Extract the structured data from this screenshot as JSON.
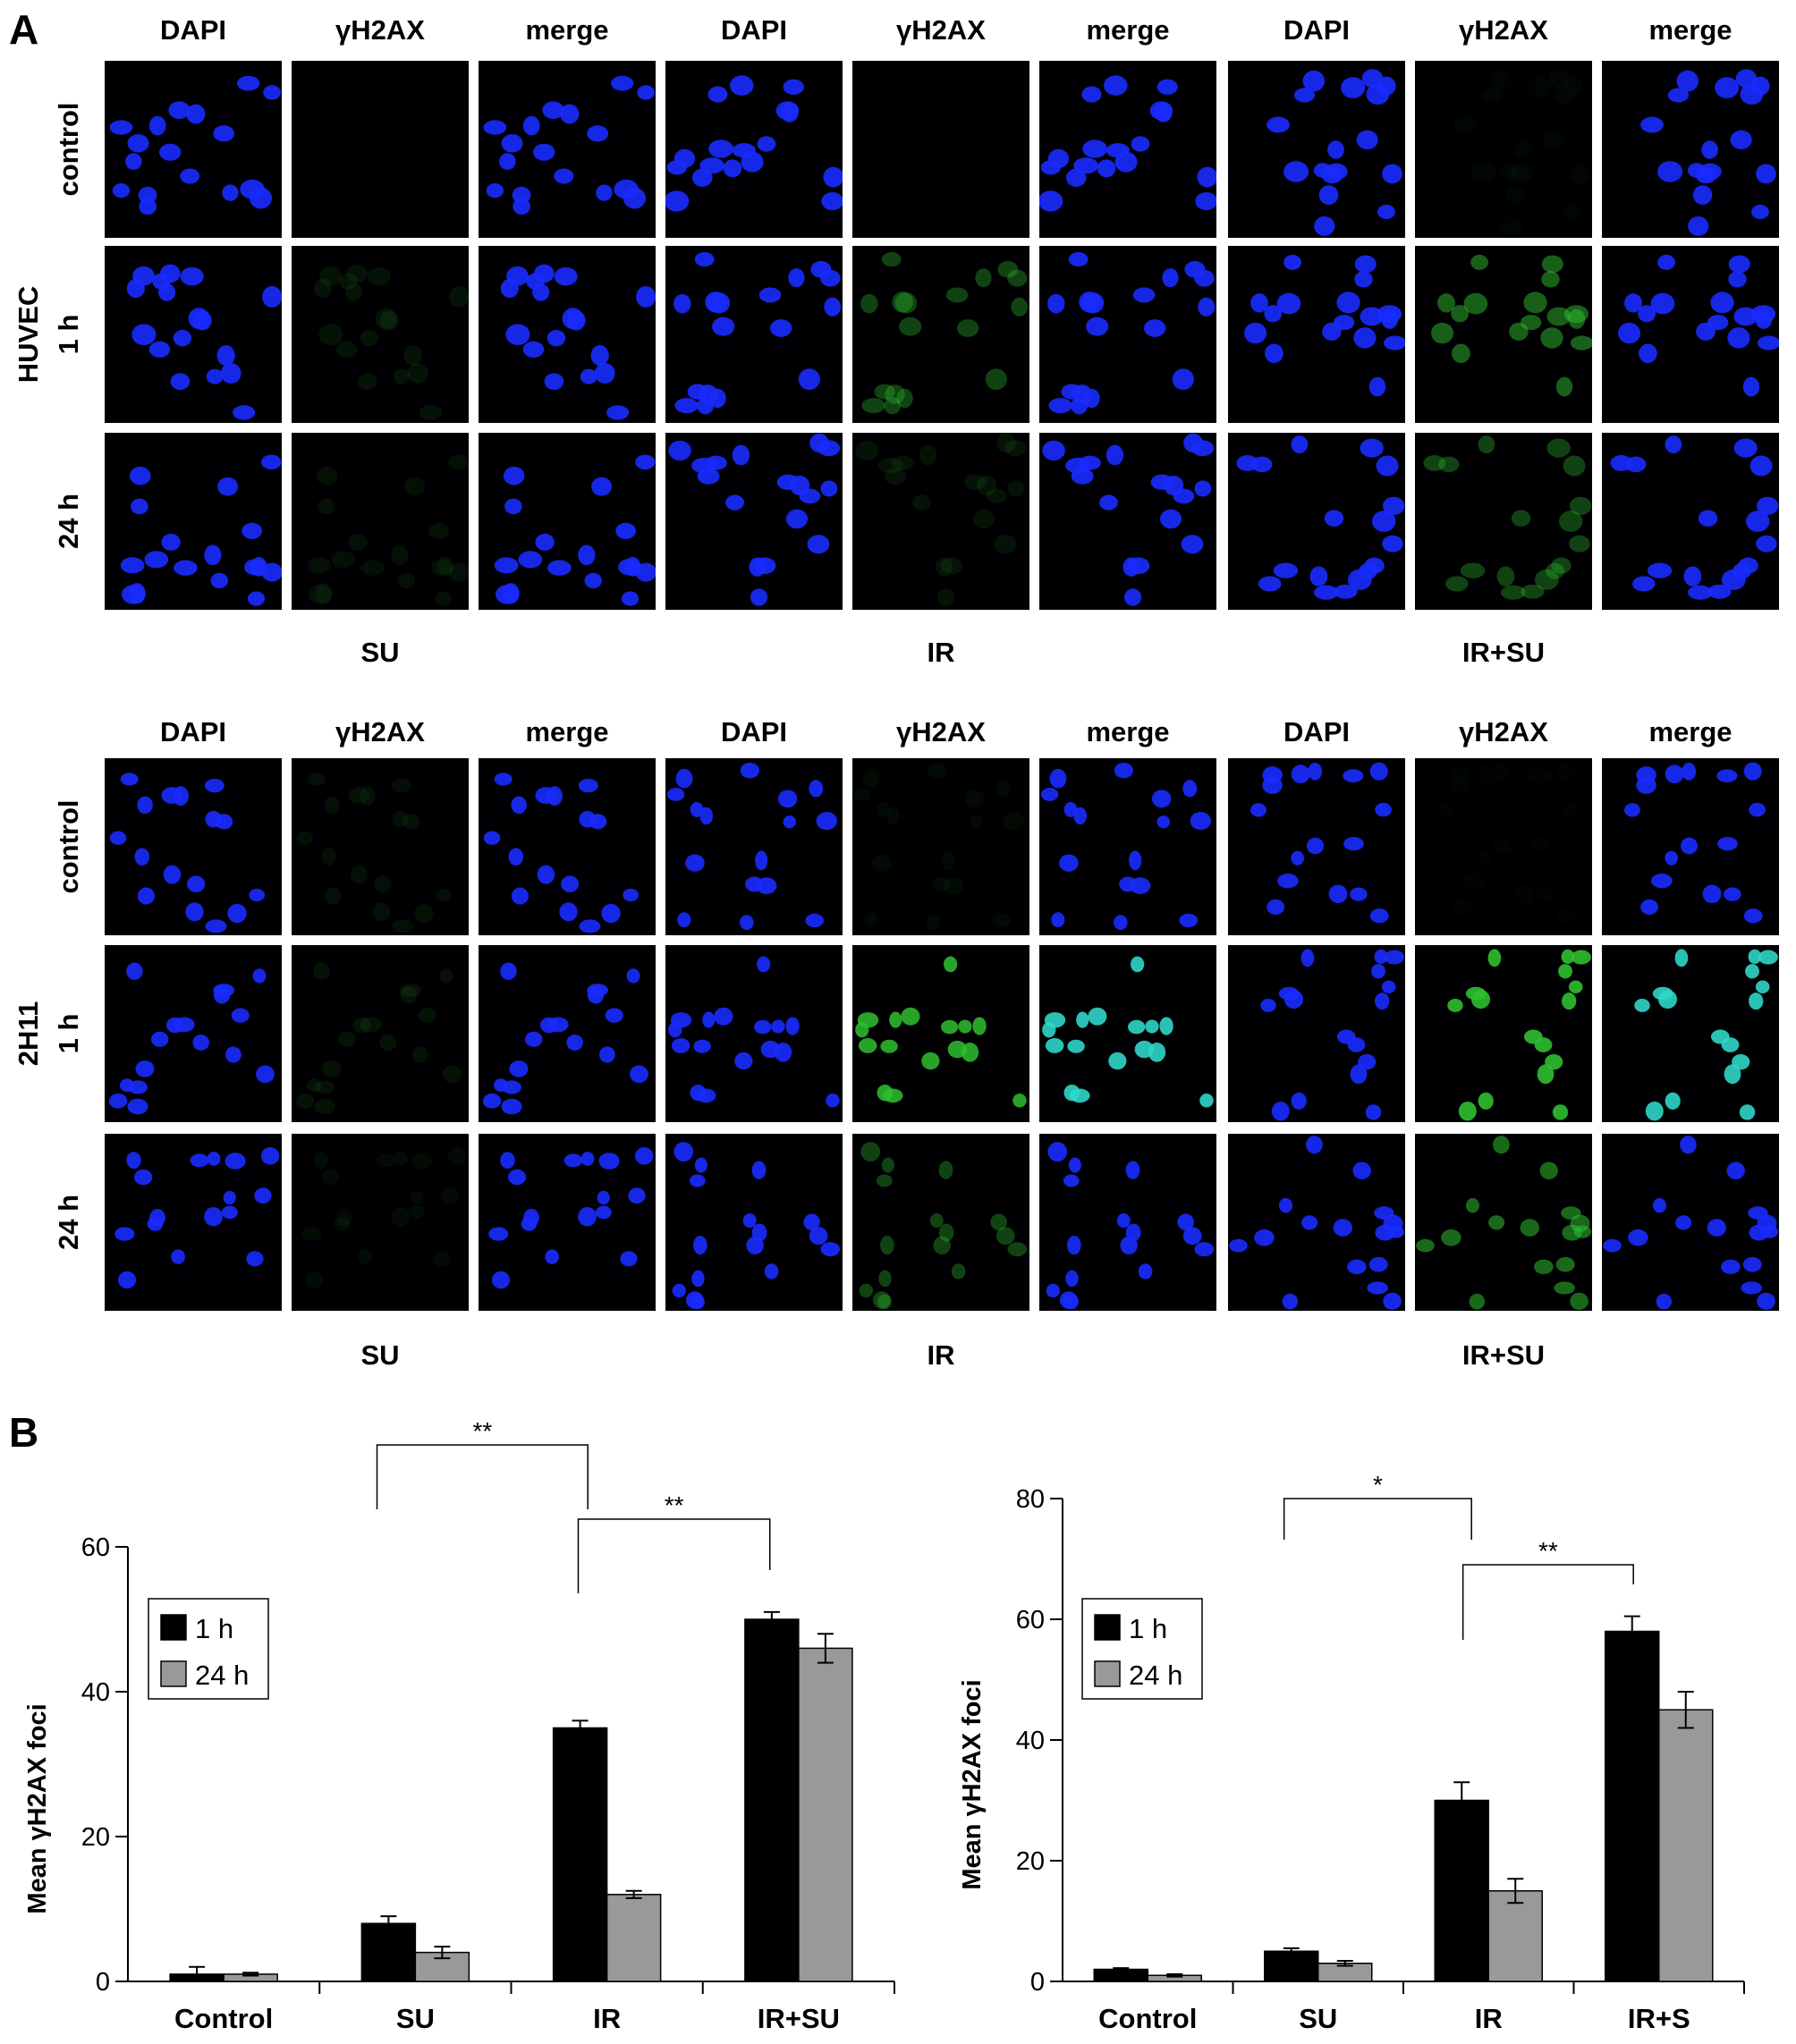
{
  "panels": {
    "a_label": "A",
    "b_label": "B"
  },
  "block1": {
    "cell_line": "HUVEC",
    "channels": [
      "DAPI",
      "γH2AX",
      "merge",
      "DAPI",
      "γH2AX",
      "merge",
      "DAPI",
      "γH2AX",
      "merge"
    ],
    "rows": [
      "control",
      "1 h",
      "24 h"
    ],
    "groups": [
      "SU",
      "IR",
      "IR+SU"
    ]
  },
  "block2": {
    "cell_line": "2H11",
    "channels": [
      "DAPI",
      "γH2AX",
      "merge",
      "DAPI",
      "γH2AX",
      "merge",
      "DAPI",
      "γH2AX",
      "merge"
    ],
    "rows": [
      "control",
      "1 h",
      "24 h"
    ],
    "groups": [
      "SU",
      "IR",
      "IR+SU"
    ]
  },
  "colors": {
    "dapi": "#1a2bff",
    "h2ax": "#2fbf2f",
    "merge_overlap": "#2fd6c8",
    "bar_1h": "#000000",
    "bar_24h": "#999999"
  },
  "chart_data": [
    {
      "type": "bar",
      "categories": [
        "Control",
        "SU",
        "IR",
        "IR+SU"
      ],
      "series": [
        {
          "name": "1 h",
          "values": [
            1,
            8,
            35,
            50
          ],
          "errors": [
            1,
            1,
            1,
            1
          ]
        },
        {
          "name": "24 h",
          "values": [
            1,
            4,
            12,
            46
          ],
          "errors": [
            0.2,
            0.8,
            0.5,
            2
          ]
        }
      ],
      "xlabel": "",
      "ylabel": "Mean γH2AX foci",
      "ylim": [
        0,
        60
      ],
      "yticks": [
        0,
        20,
        40,
        60
      ],
      "legend": "top-left",
      "grid": false,
      "significance": [
        {
          "from": "SU",
          "to": "IR",
          "label": "**"
        },
        {
          "from": "IR",
          "to": "IR+SU",
          "label": "**"
        }
      ]
    },
    {
      "type": "bar",
      "categories": [
        "Control",
        "SU",
        "IR",
        "IR+S"
      ],
      "series": [
        {
          "name": "1 h",
          "values": [
            2,
            5,
            30,
            58
          ],
          "errors": [
            0.2,
            0.5,
            3,
            2.5
          ]
        },
        {
          "name": "24 h",
          "values": [
            1,
            3,
            15,
            45
          ],
          "errors": [
            0.2,
            0.4,
            2,
            3
          ]
        }
      ],
      "xlabel": "",
      "ylabel": "Mean γH2AX foci",
      "ylim": [
        0,
        80
      ],
      "yticks": [
        0,
        20,
        40,
        60,
        80
      ],
      "legend": "top-left",
      "grid": false,
      "significance": [
        {
          "from": "SU",
          "to": "IR",
          "label": "*"
        },
        {
          "from": "IR",
          "to": "IR+S",
          "label": "**"
        }
      ]
    }
  ]
}
